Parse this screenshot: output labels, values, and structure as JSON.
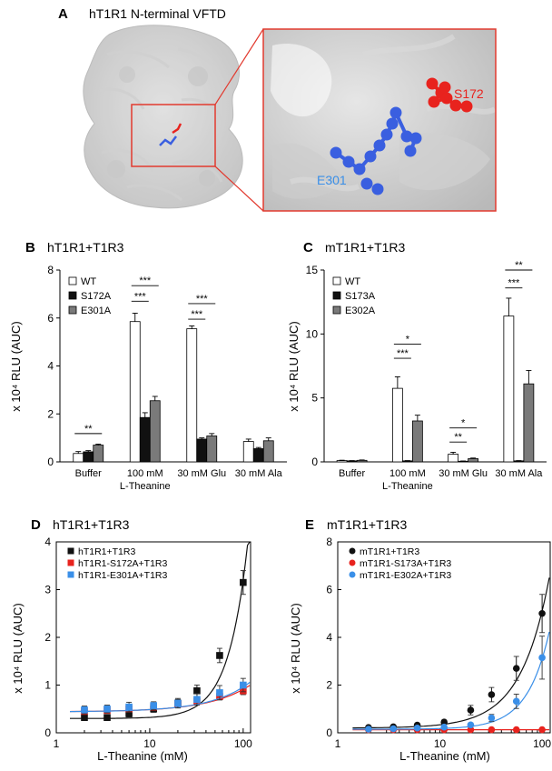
{
  "figure": {
    "panel_a": {
      "letter": "A",
      "title": "hT1R1 N-terminal VFTD",
      "labels": {
        "s172": "S172",
        "e301": "E301"
      },
      "colors": {
        "s172": "#e8231e",
        "e301": "#3a5fe0",
        "frame": "#e23a2f"
      }
    }
  },
  "chart_data": [
    {
      "id": "B",
      "type": "bar",
      "letter": "B",
      "title": "hT1R1+T1R3",
      "ylabel": "x 10⁴ RLU (AUC)",
      "ylim": [
        0,
        8
      ],
      "yticks": [
        "0",
        "2",
        "4",
        "6",
        "8"
      ],
      "categories": [
        "Buffer",
        "100 mM",
        "30 mM Glu",
        "30 mM Ala"
      ],
      "xsublabel": "L-Theanine",
      "series": [
        {
          "name": "WT",
          "color": "#ffffff",
          "values": [
            0.35,
            5.85,
            5.55,
            0.85
          ],
          "errors": [
            0.08,
            0.35,
            0.12,
            0.1
          ]
        },
        {
          "name": "S172A",
          "color": "#111111",
          "values": [
            0.42,
            1.85,
            0.95,
            0.55
          ],
          "errors": [
            0.05,
            0.2,
            0.05,
            0.05
          ]
        },
        {
          "name": "E301A",
          "color": "#7a7a7a",
          "values": [
            0.7,
            2.55,
            1.08,
            0.88
          ],
          "errors": [
            0.04,
            0.18,
            0.1,
            0.12
          ]
        }
      ],
      "significance": [
        {
          "category": 0,
          "from": 0,
          "to": 2,
          "y": 1.18,
          "label": "**"
        },
        {
          "category": 1,
          "from": 0,
          "to": 1,
          "y": 6.7,
          "label": "***"
        },
        {
          "category": 1,
          "from": 0,
          "to": 2,
          "y": 7.35,
          "label": "***"
        },
        {
          "category": 2,
          "from": 0,
          "to": 1,
          "y": 5.95,
          "label": "***"
        },
        {
          "category": 2,
          "from": 0,
          "to": 2,
          "y": 6.6,
          "label": "***"
        }
      ]
    },
    {
      "id": "C",
      "type": "bar",
      "letter": "C",
      "title": "mT1R1+T1R3",
      "ylabel": "x 10⁴ RLU (AUC)",
      "ylim": [
        0,
        15
      ],
      "yticks": [
        "0",
        "5",
        "10",
        "15"
      ],
      "categories": [
        "Buffer",
        "100 mM",
        "30 mM Glu",
        "30 mM Ala"
      ],
      "xsublabel": "L-Theanine",
      "series": [
        {
          "name": "WT",
          "color": "#ffffff",
          "values": [
            0.1,
            5.75,
            0.6,
            11.4
          ],
          "errors": [
            0.03,
            0.9,
            0.15,
            1.4
          ]
        },
        {
          "name": "S173A",
          "color": "#111111",
          "values": [
            0.08,
            0.08,
            0.05,
            0.08
          ],
          "errors": [
            0.02,
            0.02,
            0.02,
            0.02
          ]
        },
        {
          "name": "E302A",
          "color": "#7a7a7a",
          "values": [
            0.12,
            3.2,
            0.25,
            6.1
          ],
          "errors": [
            0.03,
            0.45,
            0.05,
            1.05
          ]
        }
      ],
      "significance": [
        {
          "category": 1,
          "from": 0,
          "to": 1,
          "y": 8.1,
          "label": "***"
        },
        {
          "category": 1,
          "from": 0,
          "to": 2,
          "y": 9.2,
          "label": "*"
        },
        {
          "category": 2,
          "from": 0,
          "to": 1,
          "y": 1.55,
          "label": "**"
        },
        {
          "category": 2,
          "from": 0,
          "to": 2,
          "y": 2.65,
          "label": "*"
        },
        {
          "category": 3,
          "from": 0,
          "to": 1,
          "y": 13.6,
          "label": "***"
        },
        {
          "category": 3,
          "from": 0,
          "to": 2,
          "y": 15.0,
          "label": "**"
        }
      ]
    },
    {
      "id": "D",
      "type": "scatter",
      "letter": "D",
      "title": "hT1R1+T1R3",
      "xlabel": "L-Theanine (mM)",
      "ylabel": "x 10⁴ RLU (AUC)",
      "xscale": "log",
      "xlim": [
        1,
        120
      ],
      "ylim": [
        0,
        4
      ],
      "xticks": [
        "1",
        "10",
        "100"
      ],
      "yticks": [
        "0",
        "1",
        "2",
        "3",
        "4"
      ],
      "legend": "top-left",
      "series": [
        {
          "name": "hT1R1+T1R3",
          "color": "#111111",
          "x": [
            2,
            3.5,
            6,
            11,
            20,
            32,
            56,
            100
          ],
          "y": [
            0.32,
            0.32,
            0.4,
            0.5,
            0.62,
            0.88,
            1.62,
            3.15
          ],
          "err": [
            0.06,
            0.06,
            0.07,
            0.07,
            0.08,
            0.12,
            0.15,
            0.25
          ],
          "fit": {
            "base": 0.3,
            "k": 2.9,
            "x0": 100,
            "n": 2.1
          }
        },
        {
          "name": "hT1R1-S172A+T1R3",
          "color": "#e8231e",
          "x": [
            2,
            3.5,
            6,
            11,
            20,
            32,
            56,
            100
          ],
          "y": [
            0.45,
            0.47,
            0.5,
            0.54,
            0.6,
            0.66,
            0.76,
            0.88
          ],
          "err": [
            0.05,
            0.05,
            0.05,
            0.05,
            0.06,
            0.06,
            0.07,
            0.08
          ],
          "fit": {
            "base": 0.44,
            "k": 0.47,
            "x0": 100,
            "n": 1.0
          }
        },
        {
          "name": "hT1R1-E301A+T1R3",
          "color": "#3a8fe8",
          "x": [
            2,
            3.5,
            6,
            11,
            20,
            32,
            56,
            100
          ],
          "y": [
            0.48,
            0.5,
            0.54,
            0.57,
            0.62,
            0.7,
            0.84,
            1.0
          ],
          "err": [
            0.08,
            0.08,
            0.1,
            0.08,
            0.1,
            0.12,
            0.15,
            0.14
          ],
          "fit": {
            "base": 0.44,
            "k": 0.52,
            "x0": 100,
            "n": 1.05
          }
        }
      ]
    },
    {
      "id": "E",
      "type": "scatter",
      "letter": "E",
      "title": "mT1R1+T1R3",
      "xlabel": "L-Theanine (mM)",
      "ylabel": "x 10⁴ RLU (AUC)",
      "xscale": "log",
      "xlim": [
        1,
        120
      ],
      "ylim": [
        0,
        8
      ],
      "xticks": [
        "1",
        "10",
        "100"
      ],
      "yticks": [
        "0",
        "2",
        "4",
        "6",
        "8"
      ],
      "legend": "top-left",
      "series": [
        {
          "name": "mT1R1+T1R3",
          "color": "#111111",
          "x": [
            2,
            3.5,
            6,
            11,
            20,
            32,
            56,
            100
          ],
          "y": [
            0.22,
            0.25,
            0.32,
            0.45,
            0.95,
            1.6,
            2.7,
            5.0
          ],
          "err": [
            0.05,
            0.05,
            0.06,
            0.08,
            0.2,
            0.3,
            0.5,
            0.8
          ],
          "fit": {
            "base": 0.2,
            "k": 4.9,
            "x0": 100,
            "n": 1.55
          }
        },
        {
          "name": "mT1R1-S173A+T1R3",
          "color": "#e8231e",
          "x": [
            2,
            3.5,
            6,
            11,
            20,
            32,
            56,
            100
          ],
          "y": [
            0.13,
            0.13,
            0.13,
            0.13,
            0.13,
            0.13,
            0.13,
            0.13
          ],
          "err": [
            0.02,
            0.02,
            0.02,
            0.02,
            0.02,
            0.02,
            0.02,
            0.02
          ],
          "fit": {
            "base": 0.13,
            "k": 0.0,
            "x0": 100,
            "n": 1.0
          }
        },
        {
          "name": "mT1R1-E302A+T1R3",
          "color": "#3a8fe8",
          "x": [
            2,
            3.5,
            6,
            11,
            20,
            32,
            56,
            100
          ],
          "y": [
            0.15,
            0.17,
            0.2,
            0.24,
            0.33,
            0.62,
            1.32,
            3.15
          ],
          "err": [
            0.03,
            0.03,
            0.04,
            0.05,
            0.07,
            0.15,
            0.3,
            0.9
          ],
          "fit": {
            "base": 0.15,
            "k": 2.95,
            "x0": 100,
            "n": 2.0
          }
        }
      ]
    }
  ]
}
